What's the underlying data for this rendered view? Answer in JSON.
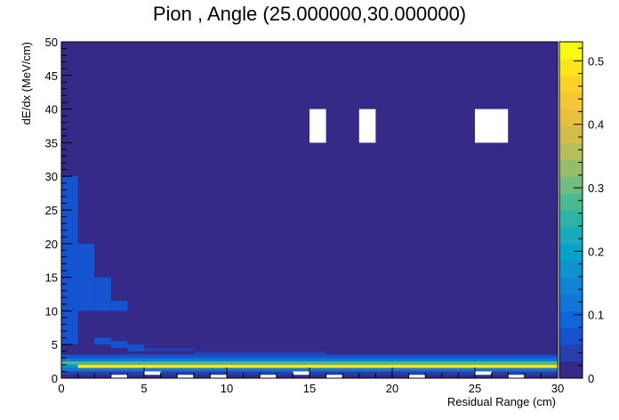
{
  "chart_data": {
    "type": "heatmap",
    "title": "Pion , Angle (25.000000,30.000000)",
    "xlabel": "Residual Range (cm)",
    "ylabel": "dE/dx (MeV/cm)",
    "xlim": [
      0,
      30
    ],
    "ylim": [
      0,
      50
    ],
    "zlim": [
      0,
      0.53
    ],
    "x_bin_width": 1,
    "y_bin_width": 0.5,
    "background_value": 0.01,
    "x_ticks": [
      0,
      5,
      10,
      15,
      20,
      25,
      30
    ],
    "y_ticks": [
      0,
      5,
      10,
      15,
      20,
      25,
      30,
      35,
      40,
      45,
      50
    ],
    "z_ticks": [
      0,
      0.1,
      0.2,
      0.3,
      0.4,
      0.5
    ],
    "grid": false,
    "colorbar": "right",
    "empty_cells": [
      {
        "x": [
          15,
          16
        ],
        "y": [
          35,
          40
        ]
      },
      {
        "x": [
          18,
          19
        ],
        "y": [
          35,
          40
        ]
      },
      {
        "x": [
          25,
          27
        ],
        "y": [
          35,
          40
        ]
      },
      {
        "x": [
          3,
          4
        ],
        "y": [
          0,
          0.5
        ]
      },
      {
        "x": [
          5,
          6
        ],
        "y": [
          0.5,
          1
        ]
      },
      {
        "x": [
          7,
          8
        ],
        "y": [
          0,
          0.5
        ]
      },
      {
        "x": [
          9,
          10
        ],
        "y": [
          0,
          0.5
        ]
      },
      {
        "x": [
          12,
          13
        ],
        "y": [
          0,
          0.5
        ]
      },
      {
        "x": [
          14,
          15
        ],
        "y": [
          0.5,
          1
        ]
      },
      {
        "x": [
          16,
          17
        ],
        "y": [
          0,
          0.5
        ]
      },
      {
        "x": [
          21,
          22
        ],
        "y": [
          0,
          0.5
        ]
      },
      {
        "x": [
          25,
          26
        ],
        "y": [
          0.5,
          1
        ]
      },
      {
        "x": [
          27,
          28
        ],
        "y": [
          0,
          0.5
        ]
      }
    ],
    "cells": [
      {
        "x": [
          0,
          1
        ],
        "y": [
          25,
          30
        ],
        "z": 0.06
      },
      {
        "x": [
          0,
          1
        ],
        "y": [
          20,
          25
        ],
        "z": 0.06
      },
      {
        "x": [
          0,
          2
        ],
        "y": [
          15,
          20
        ],
        "z": 0.07
      },
      {
        "x": [
          0,
          2
        ],
        "y": [
          10,
          15
        ],
        "z": 0.06
      },
      {
        "x": [
          2,
          3
        ],
        "y": [
          10,
          15
        ],
        "z": 0.06
      },
      {
        "x": [
          3,
          4
        ],
        "y": [
          10,
          11.5
        ],
        "z": 0.06
      },
      {
        "x": [
          0,
          1
        ],
        "y": [
          5,
          10
        ],
        "z": 0.06
      },
      {
        "x": [
          2,
          3
        ],
        "y": [
          5,
          6
        ],
        "z": 0.06
      },
      {
        "x": [
          3,
          4
        ],
        "y": [
          4.5,
          5.5
        ],
        "z": 0.06
      },
      {
        "x": [
          4,
          5
        ],
        "y": [
          4,
          5
        ],
        "z": 0.06
      },
      {
        "x": [
          5,
          8
        ],
        "y": [
          4,
          4.5
        ],
        "z": 0.05
      },
      {
        "x": [
          8,
          16
        ],
        "y": [
          3.5,
          4
        ],
        "z": 0.05
      },
      {
        "x": [
          0,
          30
        ],
        "y": [
          3,
          3.5
        ],
        "z": 0.07
      },
      {
        "x": [
          0,
          30
        ],
        "y": [
          2.5,
          3
        ],
        "z": 0.12
      },
      {
        "x": [
          0,
          30
        ],
        "y": [
          2,
          2.5
        ],
        "z": 0.28
      },
      {
        "x": [
          0,
          1
        ],
        "y": [
          1.5,
          2
        ],
        "z": 0.18
      },
      {
        "x": [
          1,
          30
        ],
        "y": [
          1.5,
          2
        ],
        "z": 0.5
      },
      {
        "x": [
          0,
          30
        ],
        "y": [
          1,
          1.5
        ],
        "z": 0.12
      },
      {
        "x": [
          0,
          30
        ],
        "y": [
          0.5,
          1
        ],
        "z": 0.05
      },
      {
        "x": [
          0,
          30
        ],
        "y": [
          0,
          0.5
        ],
        "z": 0.02
      }
    ]
  }
}
